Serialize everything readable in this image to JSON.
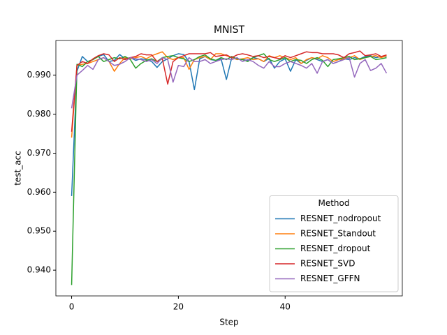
{
  "chart_data": {
    "type": "line",
    "title": "MNIST",
    "x_label": "Step",
    "y_label": "test_acc",
    "legend_title": "Method",
    "legend_position": "lower right",
    "x": [
      0,
      1,
      2,
      3,
      4,
      5,
      6,
      7,
      8,
      9,
      10,
      11,
      12,
      13,
      14,
      15,
      16,
      17,
      18,
      19,
      20,
      21,
      22,
      23,
      24,
      25,
      26,
      27,
      28,
      29,
      30,
      31,
      32,
      33,
      34,
      35,
      36,
      37,
      38,
      39,
      40,
      41,
      42,
      43,
      44,
      45,
      46,
      47,
      48,
      49,
      50,
      51,
      52,
      53,
      54,
      55,
      56,
      57,
      58,
      59
    ],
    "xlim": [
      -2.95,
      61.95
    ],
    "xticks": [
      0,
      20,
      40
    ],
    "ylim": [
      0.9334,
      0.9989
    ],
    "yticks": [
      {
        "value": 0.94,
        "label": "0.940"
      },
      {
        "value": 0.95,
        "label": "0.950"
      },
      {
        "value": 0.96,
        "label": "0.960"
      },
      {
        "value": 0.97,
        "label": "0.970"
      },
      {
        "value": 0.98,
        "label": "0.980"
      },
      {
        "value": 0.99,
        "label": "0.990"
      }
    ],
    "series": [
      {
        "name": "RESNET_nodropout",
        "color": "#1f77b4",
        "values": [
          0.959,
          0.991,
          0.9948,
          0.9935,
          0.994,
          0.9948,
          0.9953,
          0.9935,
          0.9938,
          0.9953,
          0.9942,
          0.9945,
          0.9938,
          0.9942,
          0.994,
          0.9935,
          0.992,
          0.9935,
          0.9942,
          0.995,
          0.9955,
          0.9953,
          0.9935,
          0.9863,
          0.9942,
          0.9948,
          0.994,
          0.9938,
          0.9942,
          0.9889,
          0.9945,
          0.9942,
          0.994,
          0.9938,
          0.9945,
          0.9942,
          0.9935,
          0.9943,
          0.9918,
          0.9935,
          0.9942,
          0.991,
          0.994,
          0.993,
          0.9938,
          0.9945,
          0.994,
          0.9935,
          0.994,
          0.993,
          0.9935,
          0.9942,
          0.994,
          0.9945,
          0.9942,
          0.9948,
          0.995,
          0.9945,
          0.9948,
          0.9948
        ]
      },
      {
        "name": "RESNET_Standout",
        "color": "#ff7f0e",
        "values": [
          0.974,
          0.9925,
          0.9928,
          0.993,
          0.9935,
          0.994,
          0.9945,
          0.9935,
          0.991,
          0.993,
          0.9945,
          0.9942,
          0.9945,
          0.9948,
          0.9942,
          0.995,
          0.9955,
          0.996,
          0.9945,
          0.994,
          0.9945,
          0.9945,
          0.9915,
          0.994,
          0.9945,
          0.9948,
          0.994,
          0.9955,
          0.9955,
          0.995,
          0.9945,
          0.994,
          0.9942,
          0.9945,
          0.994,
          0.9942,
          0.9935,
          0.995,
          0.9945,
          0.995,
          0.9945,
          0.994,
          0.9945,
          0.993,
          0.994,
          0.9945,
          0.9942,
          0.995,
          0.9945,
          0.9935,
          0.994,
          0.9942,
          0.9945,
          0.995,
          0.994,
          0.9945,
          0.9948,
          0.995,
          0.9945,
          0.995
        ]
      },
      {
        "name": "RESNET_dropout",
        "color": "#2ca02c",
        "values": [
          0.9362,
          0.9928,
          0.9922,
          0.9935,
          0.994,
          0.9948,
          0.9935,
          0.994,
          0.9945,
          0.9942,
          0.9948,
          0.994,
          0.9918,
          0.993,
          0.9938,
          0.9942,
          0.9935,
          0.9945,
          0.9948,
          0.995,
          0.9945,
          0.9942,
          0.9935,
          0.994,
          0.9948,
          0.9952,
          0.9942,
          0.9938,
          0.9945,
          0.994,
          0.9948,
          0.9942,
          0.994,
          0.9935,
          0.9945,
          0.995,
          0.9955,
          0.994,
          0.9935,
          0.994,
          0.9945,
          0.9935,
          0.994,
          0.9938,
          0.993,
          0.994,
          0.9945,
          0.9938,
          0.9922,
          0.994,
          0.9942,
          0.9945,
          0.9948,
          0.994,
          0.9942,
          0.9945,
          0.9948,
          0.994,
          0.9942,
          0.9945
        ]
      },
      {
        "name": "RESNET_SVD",
        "color": "#d62728",
        "values": [
          0.9755,
          0.9925,
          0.9935,
          0.993,
          0.9942,
          0.995,
          0.9955,
          0.9952,
          0.9935,
          0.9945,
          0.994,
          0.9945,
          0.9948,
          0.9955,
          0.9952,
          0.9952,
          0.9935,
          0.9942,
          0.9877,
          0.9935,
          0.9945,
          0.995,
          0.9955,
          0.9955,
          0.9955,
          0.9955,
          0.9958,
          0.9948,
          0.995,
          0.9952,
          0.9945,
          0.9952,
          0.9955,
          0.9952,
          0.9948,
          0.995,
          0.9945,
          0.9948,
          0.9945,
          0.9942,
          0.995,
          0.9945,
          0.995,
          0.9955,
          0.996,
          0.9958,
          0.9958,
          0.9955,
          0.9955,
          0.9955,
          0.9952,
          0.9945,
          0.9955,
          0.9958,
          0.9962,
          0.995,
          0.9952,
          0.9955,
          0.9948,
          0.9952
        ]
      },
      {
        "name": "RESNET_GFFN",
        "color": "#9467bd",
        "values": [
          0.9815,
          0.99,
          0.9912,
          0.9925,
          0.9915,
          0.994,
          0.9945,
          0.9935,
          0.9925,
          0.9928,
          0.9935,
          0.9945,
          0.9942,
          0.994,
          0.9935,
          0.994,
          0.993,
          0.9945,
          0.994,
          0.9882,
          0.9925,
          0.9922,
          0.9945,
          0.9935,
          0.9935,
          0.994,
          0.993,
          0.9935,
          0.994,
          0.9942,
          0.994,
          0.9945,
          0.9935,
          0.994,
          0.9935,
          0.9925,
          0.9918,
          0.9935,
          0.9922,
          0.9922,
          0.993,
          0.9935,
          0.993,
          0.9925,
          0.9918,
          0.993,
          0.9905,
          0.9935,
          0.994,
          0.993,
          0.9935,
          0.994,
          0.9945,
          0.9895,
          0.993,
          0.994,
          0.9912,
          0.9918,
          0.993,
          0.9905
        ]
      }
    ]
  }
}
